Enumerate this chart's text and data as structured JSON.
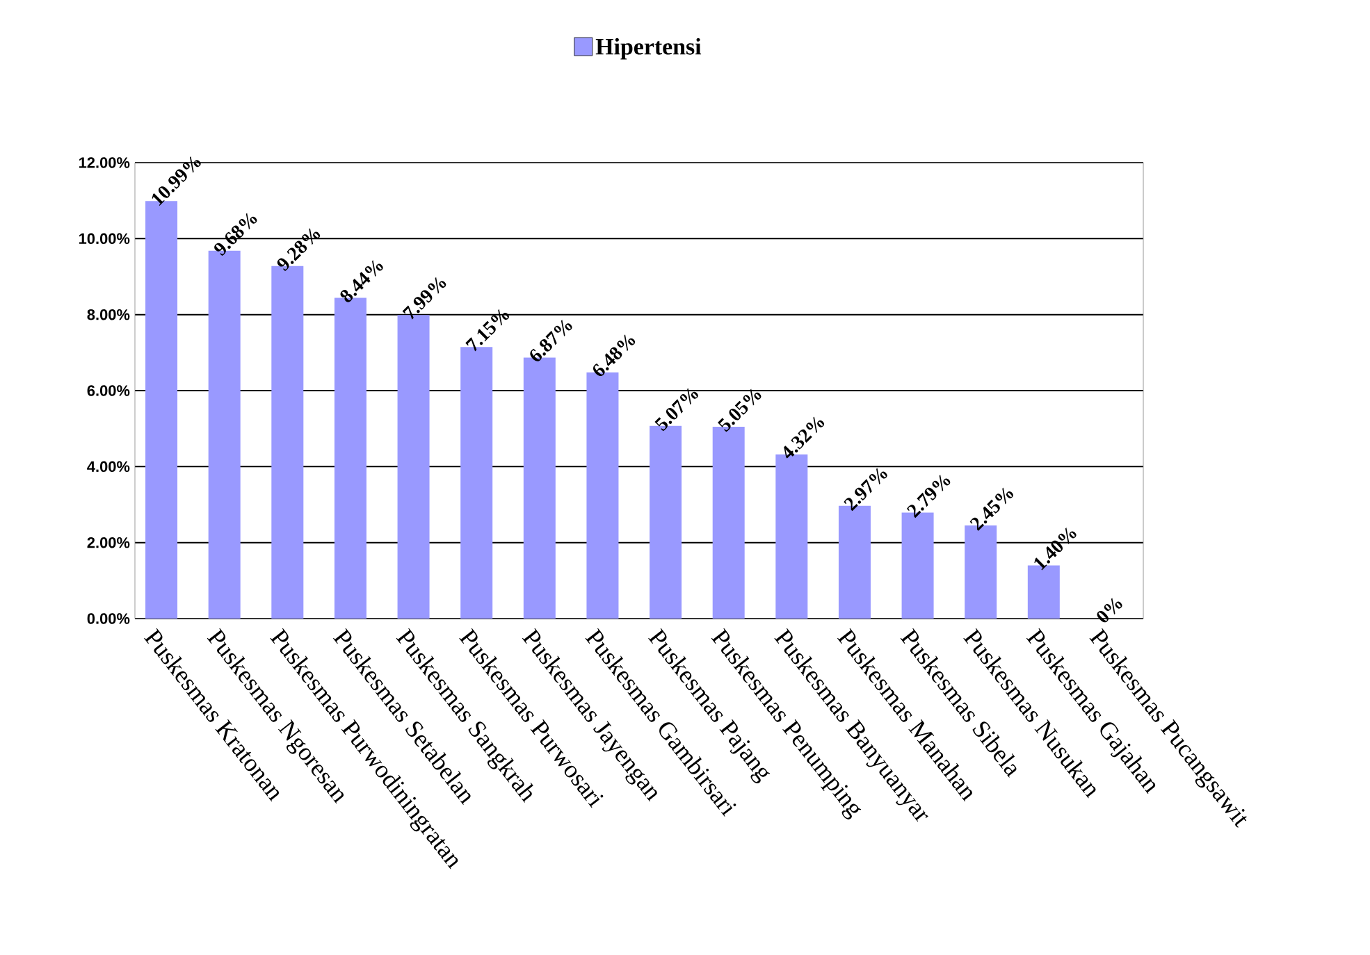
{
  "chart_data": {
    "type": "bar",
    "categories": [
      "Puskesmas Kratonan",
      "Puskesmas Ngoresan",
      "Puskesmas Purwodiningratan",
      "Puskesmas Setabelan",
      "Puskesmas Sangkrah",
      "Puskesmas Purwosari",
      "Puskesmas Jayengan",
      "Puskesmas Gambirsari",
      "Puskesmas Pajang",
      "Puskesmas Penumping",
      "Puskesmas Banyuanyar",
      "Puskesmas Manahan",
      "Puskesmas Sibela",
      "Puskesmas Nusukan",
      "Puskesmas Gajahan",
      "Puskesmas Pucangsawit"
    ],
    "series": [
      {
        "name": "Hipertensi",
        "color": "#9999ff",
        "values": [
          10.99,
          9.68,
          9.28,
          8.44,
          7.99,
          7.15,
          6.87,
          6.48,
          5.07,
          5.05,
          4.32,
          2.97,
          2.79,
          2.45,
          1.4,
          0
        ],
        "value_labels": [
          "10.99%",
          "9.68%",
          "9.28%",
          "8.44%",
          "7.99%",
          "7.15%",
          "6.87%",
          "6.48%",
          "5.07%",
          "5.05%",
          "4.32%",
          "2.97%",
          "2.79%",
          "2.45%",
          "1.40%",
          "0%"
        ]
      }
    ],
    "ylim": [
      0,
      12
    ],
    "yticks": [
      {
        "value": 0,
        "label": "0.00%"
      },
      {
        "value": 2,
        "label": "2.00%"
      },
      {
        "value": 4,
        "label": "4.00%"
      },
      {
        "value": 6,
        "label": "6.00%"
      },
      {
        "value": 8,
        "label": "8.00%"
      },
      {
        "value": 10,
        "label": "10.00%"
      },
      {
        "value": 12,
        "label": "12.00%"
      }
    ],
    "grid": "y",
    "legend": "top"
  }
}
